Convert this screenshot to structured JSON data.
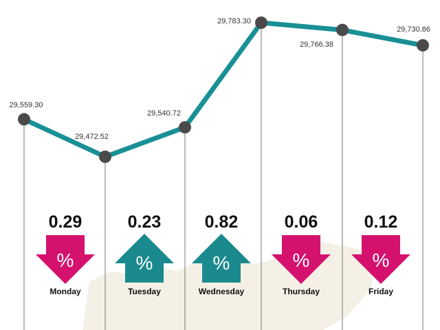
{
  "colors": {
    "line": "#199096",
    "point": "#4a4a4a",
    "up": "#1a8a8f",
    "down": "#d4126e",
    "vline": "#555555",
    "bg_shape": "#f1ece0"
  },
  "chart_data": {
    "type": "line",
    "categories": [
      "Monday",
      "Tuesday",
      "Wednesday",
      "Thursday",
      "Friday",
      ""
    ],
    "values": [
      29559.3,
      29472.52,
      29540.72,
      29783.3,
      29766.38,
      29730.86
    ],
    "value_labels": [
      "29,559.30",
      "29,472.52",
      "29,540.72",
      "29,783.30",
      "29,766.38",
      "29,730.86"
    ],
    "changes": [
      {
        "day": "Monday",
        "value": "0.29",
        "direction": "down",
        "symbol": "%"
      },
      {
        "day": "Tuesday",
        "value": "0.23",
        "direction": "up",
        "symbol": "%"
      },
      {
        "day": "Wednesday",
        "value": "0.82",
        "direction": "up",
        "symbol": "%"
      },
      {
        "day": "Thursday",
        "value": "0.06",
        "direction": "down",
        "symbol": "%"
      },
      {
        "day": "Friday",
        "value": "0.12",
        "direction": "down",
        "symbol": "%"
      }
    ],
    "ylim": [
      29472.52,
      29783.3
    ],
    "grid": false,
    "legend": "none"
  }
}
